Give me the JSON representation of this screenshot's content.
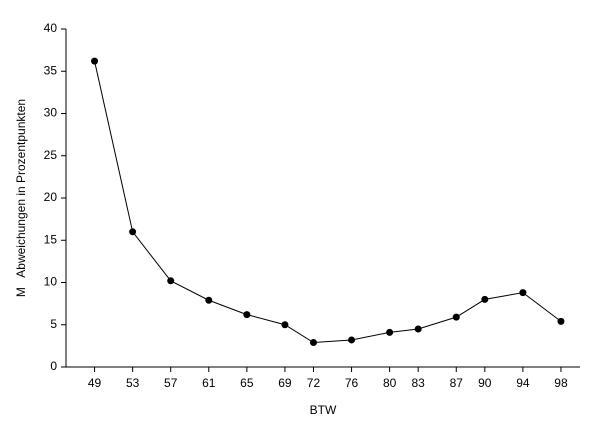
{
  "chart_data": {
    "type": "line",
    "x": [
      49,
      53,
      57,
      61,
      65,
      69,
      72,
      76,
      80,
      83,
      87,
      90,
      94,
      98
    ],
    "series": [
      {
        "color": "#000000",
        "values": [
          36.2,
          16.0,
          10.2,
          7.9,
          6.2,
          5.0,
          2.9,
          3.2,
          4.1,
          4.5,
          5.9,
          8.0,
          8.8,
          5.4
        ]
      }
    ],
    "xlim": [
      46,
      100
    ],
    "xticks": [
      49,
      53,
      57,
      61,
      65,
      69,
      72,
      76,
      80,
      83,
      87,
      90,
      94,
      98
    ],
    "ylim": [
      0,
      40
    ],
    "yticks": [
      0,
      5,
      10,
      15,
      20,
      25,
      30,
      35,
      40
    ],
    "xlabel": "BTW",
    "ylabel": "M   Abweichungen in Prozentpunkten",
    "grid": false
  }
}
